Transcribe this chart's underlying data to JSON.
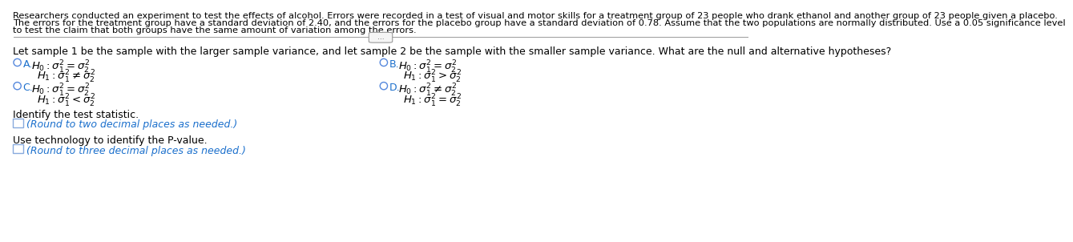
{
  "background_color": "#ffffff",
  "para_line1": "Researchers conducted an experiment to test the effects of alcohol. Errors were recorded in a test of visual and motor skills for a treatment group of 23 people who drank ethanol and another group of 23 people given a placebo.",
  "para_line2": "The errors for the treatment group have a standard deviation of 2.40, and the errors for the placebo group have a standard deviation of 0.78. Assume that the two populations are normally distributed. Use a 0.05 significance level",
  "para_line3": "to test the claim that both groups have the same amount of variation among the errors.",
  "question_text": "Let sample 1 be the sample with the larger sample variance, and let sample 2 be the sample with the smaller sample variance. What are the null and alternative hypotheses?",
  "opt_A_label": "A.",
  "opt_A_h0": "$H_0: \\sigma_1^2 = \\sigma_2^2$",
  "opt_A_h1": "$H_1: \\sigma_1^2 \\neq \\sigma_2^2$",
  "opt_B_label": "B.",
  "opt_B_h0": "$H_0: \\sigma_1^2 = \\sigma_2^2$",
  "opt_B_h1": "$H_1: \\sigma_1^2 > \\sigma_2^2$",
  "opt_C_label": "C.",
  "opt_C_h0": "$H_0: \\sigma_1^2 = \\sigma_2^2$",
  "opt_C_h1": "$H_1: \\sigma_1^2 < \\sigma_2^2$",
  "opt_D_label": "D.",
  "opt_D_h0": "$H_0: \\sigma_1^2 \\neq \\sigma_2^2$",
  "opt_D_h1": "$H_1: \\sigma_1^2 = \\sigma_2^2$",
  "identify_label": "Identify the test statistic.",
  "round2_label": "(Round to two decimal places as needed.)",
  "pvalue_label": "Use technology to identify the P-value.",
  "round3_label": "(Round to three decimal places as needed.)",
  "text_color": "#000000",
  "blue_color": "#1a6fcc",
  "circle_color": "#5588dd",
  "box_edge_color": "#88aadd",
  "font_size_para": 8.2,
  "font_size_main": 9.0,
  "font_size_math": 9.5,
  "font_size_blue": 9.0
}
